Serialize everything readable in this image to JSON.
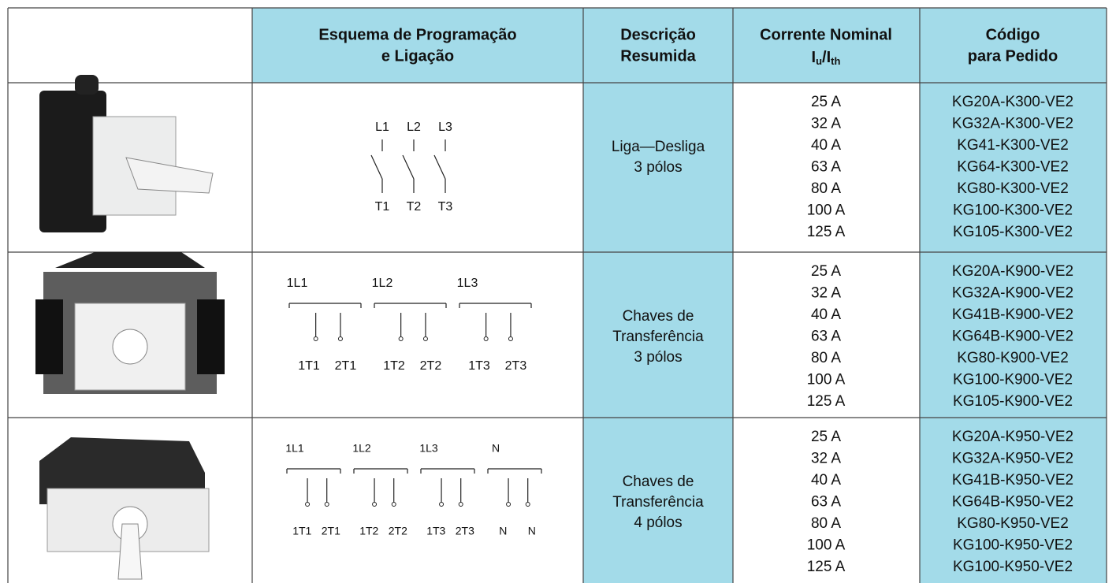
{
  "header": {
    "scheme": [
      "Esquema de Programação",
      "e Ligação"
    ],
    "description": [
      "Descrição",
      "Resumida"
    ],
    "current": {
      "title": "Corrente Nominal",
      "symbol": [
        "I",
        "u",
        "/I",
        "th"
      ]
    },
    "code": [
      "Código",
      "para Pedido"
    ]
  },
  "rows": [
    {
      "diagram": {
        "top": [
          "L1",
          "L2",
          "L3"
        ],
        "bottom": [
          "T1",
          "T2",
          "T3"
        ]
      },
      "description": [
        "Liga—Desliga",
        "3 pólos"
      ],
      "currents": [
        "25 A",
        "32 A",
        "40 A",
        "63 A",
        "80 A",
        "100 A",
        "125 A"
      ],
      "codes": [
        "KG20A-K300-VE2",
        "KG32A-K300-VE2",
        "KG41-K300-VE2",
        "KG64-K300-VE2",
        "KG80-K300-VE2",
        "KG100-K300-VE2",
        "KG105-K300-VE2"
      ]
    },
    {
      "diagram": {
        "top": [
          "1L1",
          "1L2",
          "1L3"
        ],
        "bottom": [
          "1T1",
          "2T1",
          "1T2",
          "2T2",
          "1T3",
          "2T3"
        ]
      },
      "description": [
        "Chaves de",
        "Transferência",
        "3 pólos"
      ],
      "currents": [
        "25 A",
        "32 A",
        "40 A",
        "63 A",
        "80 A",
        "100 A",
        "125 A"
      ],
      "codes": [
        "KG20A-K900-VE2",
        "KG32A-K900-VE2",
        "KG41B-K900-VE2",
        "KG64B-K900-VE2",
        "KG80-K900-VE2",
        "KG100-K900-VE2",
        "KG105-K900-VE2"
      ]
    },
    {
      "diagram": {
        "top": [
          "1L1",
          "1L2",
          "1L3",
          "N"
        ],
        "bottom": [
          "1T1",
          "2T1",
          "1T2",
          "2T2",
          "1T3",
          "2T3",
          "N",
          "N"
        ]
      },
      "description": [
        "Chaves de",
        "Transferência",
        "4 pólos"
      ],
      "currents": [
        "25 A",
        "32 A",
        "40 A",
        "63 A",
        "80 A",
        "100 A",
        "125 A"
      ],
      "codes": [
        "KG20A-K950-VE2",
        "KG32A-K950-VE2",
        "KG41B-K950-VE2",
        "KG64B-K950-VE2",
        "KG80-K950-VE2",
        "KG100-K950-VE2",
        "KG100-K950-VE2"
      ]
    }
  ]
}
